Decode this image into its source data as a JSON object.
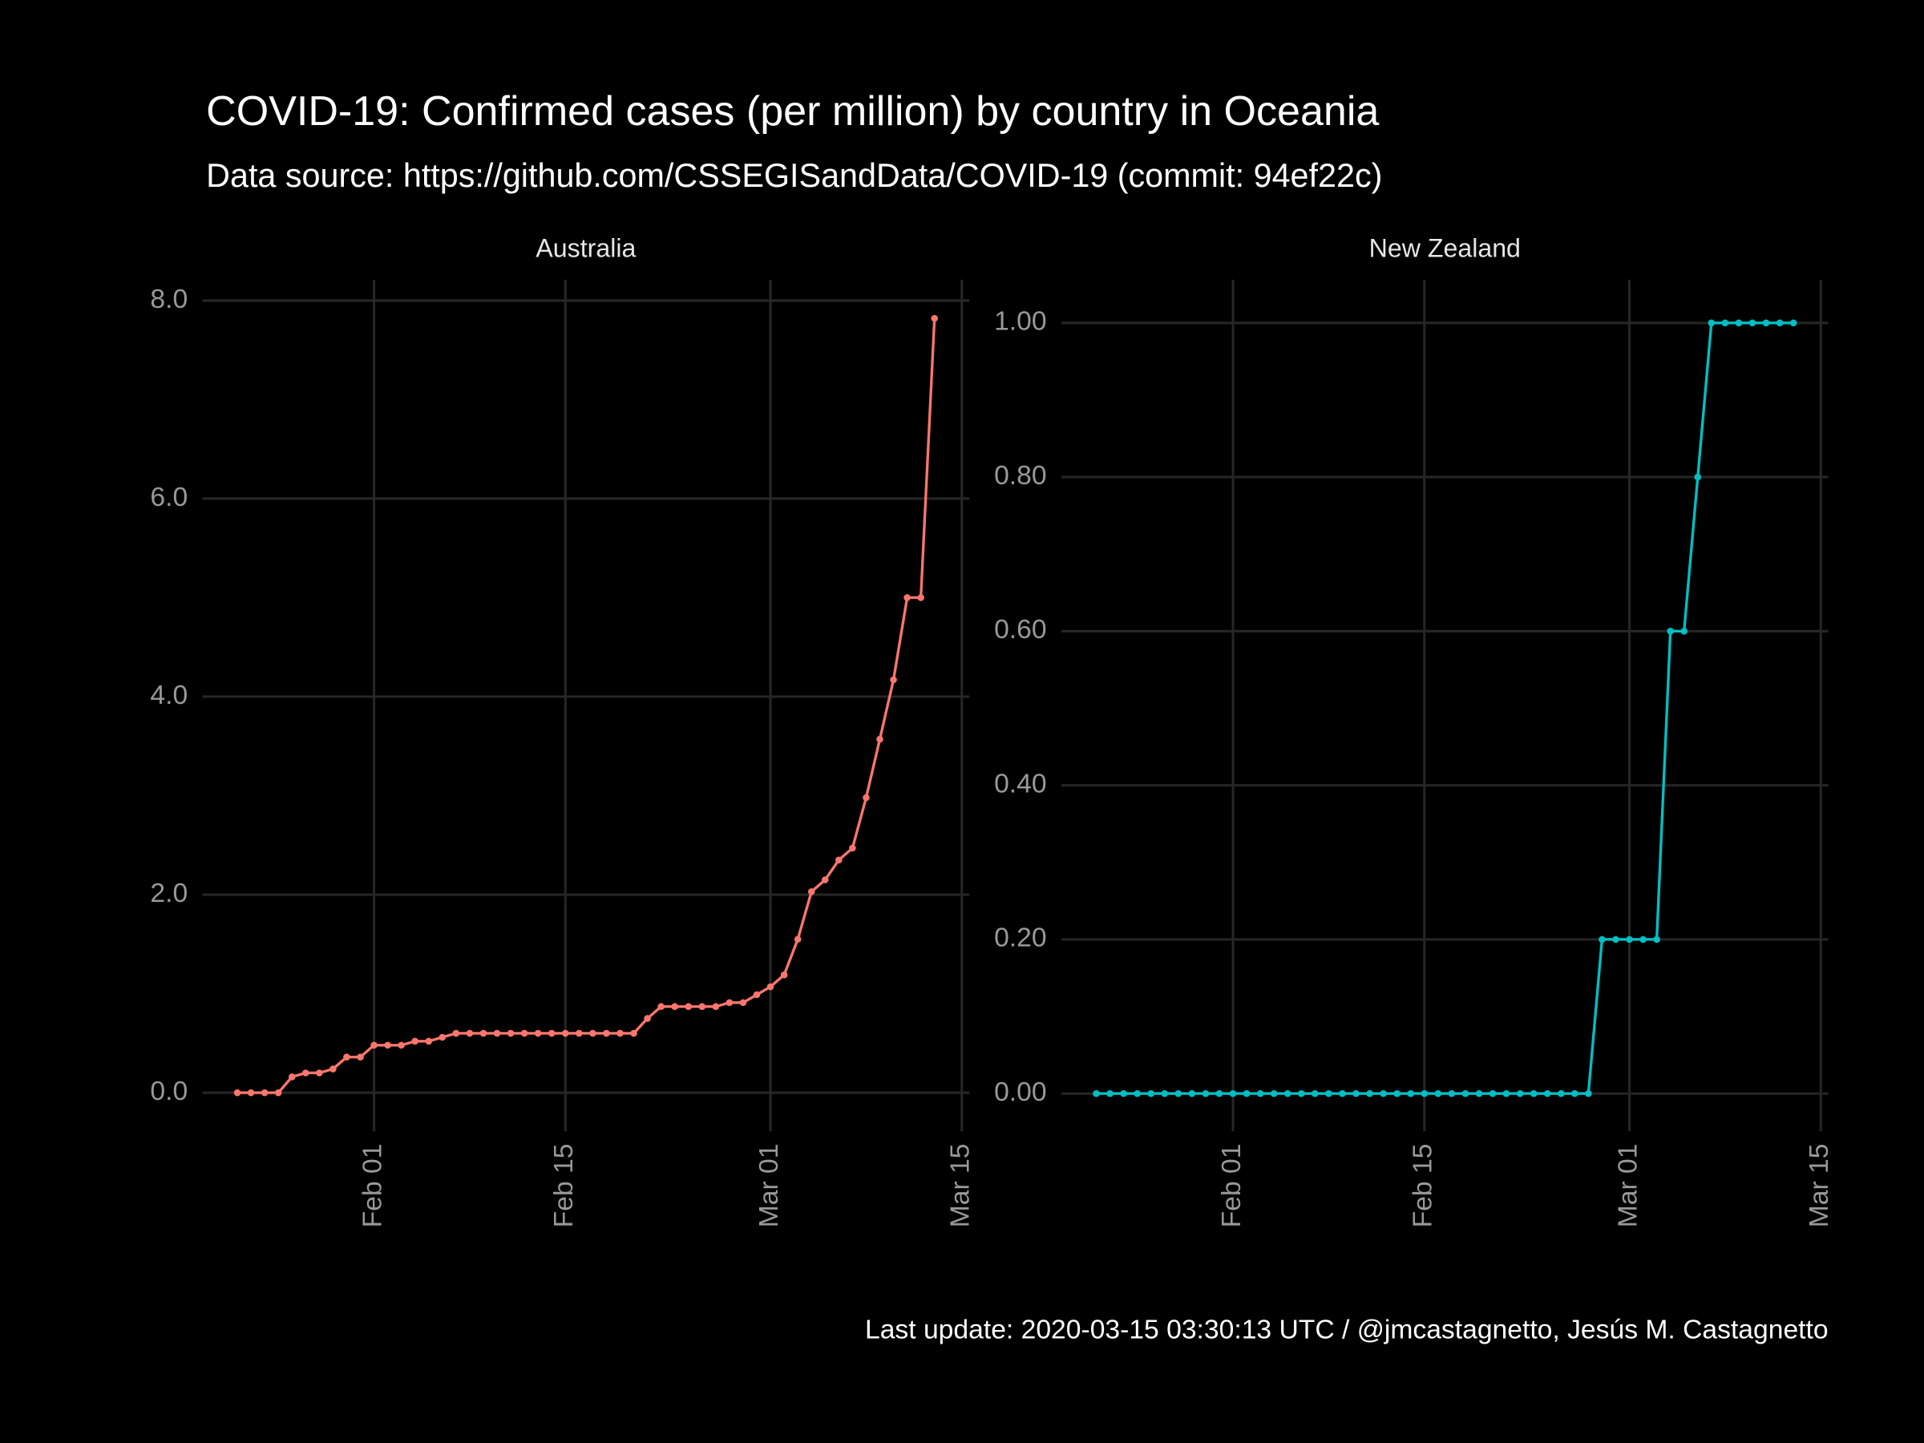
{
  "title": "COVID-19: Confirmed cases (per million)  by country in Oceania",
  "subtitle": "Data source: https://github.com/CSSEGISandData/COVID-19 (commit: 94ef22c)",
  "caption": "Last update:  2020-03-15 03:30:13 UTC / @jmcastagnetto, Jesús M. Castagnetto",
  "chart_data": [
    {
      "type": "line",
      "title": "Australia",
      "color": "#f8766d",
      "grid": true,
      "x": [
        "Jan 22",
        "Jan 23",
        "Jan 24",
        "Jan 25",
        "Jan 26",
        "Jan 27",
        "Jan 28",
        "Jan 29",
        "Jan 30",
        "Jan 31",
        "Feb 01",
        "Feb 02",
        "Feb 03",
        "Feb 04",
        "Feb 05",
        "Feb 06",
        "Feb 07",
        "Feb 08",
        "Feb 09",
        "Feb 10",
        "Feb 11",
        "Feb 12",
        "Feb 13",
        "Feb 14",
        "Feb 15",
        "Feb 16",
        "Feb 17",
        "Feb 18",
        "Feb 19",
        "Feb 20",
        "Feb 21",
        "Feb 22",
        "Feb 23",
        "Feb 24",
        "Feb 25",
        "Feb 26",
        "Feb 27",
        "Feb 28",
        "Feb 29",
        "Mar 01",
        "Mar 02",
        "Mar 03",
        "Mar 04",
        "Mar 05",
        "Mar 06",
        "Mar 07",
        "Mar 08",
        "Mar 09",
        "Mar 10",
        "Mar 11",
        "Mar 12",
        "Mar 13"
      ],
      "values": [
        0,
        0,
        0,
        0,
        0.16,
        0.2,
        0.2,
        0.24,
        0.36,
        0.36,
        0.48,
        0.48,
        0.48,
        0.52,
        0.52,
        0.56,
        0.6,
        0.6,
        0.6,
        0.6,
        0.6,
        0.6,
        0.6,
        0.6,
        0.6,
        0.6,
        0.6,
        0.6,
        0.6,
        0.6,
        0.75,
        0.87,
        0.87,
        0.87,
        0.87,
        0.87,
        0.91,
        0.91,
        0.99,
        1.07,
        1.19,
        1.55,
        2.03,
        2.15,
        2.35,
        2.47,
        2.98,
        3.57,
        4.17,
        5.0,
        5.0,
        7.82
      ],
      "ylim": [
        -0.39,
        8.21
      ],
      "yticks": [
        {
          "value": 0,
          "label": "0.0"
        },
        {
          "value": 2,
          "label": "2.0"
        },
        {
          "value": 4,
          "label": "4.0"
        },
        {
          "value": 6,
          "label": "6.0"
        },
        {
          "value": 8,
          "label": "8.0"
        }
      ],
      "xticks": [
        "Feb 01",
        "Feb 15",
        "Mar 01",
        "Mar 15"
      ]
    },
    {
      "type": "line",
      "title": "New Zealand",
      "color": "#00bfc4",
      "grid": true,
      "x": [
        "Jan 22",
        "Jan 23",
        "Jan 24",
        "Jan 25",
        "Jan 26",
        "Jan 27",
        "Jan 28",
        "Jan 29",
        "Jan 30",
        "Jan 31",
        "Feb 01",
        "Feb 02",
        "Feb 03",
        "Feb 04",
        "Feb 05",
        "Feb 06",
        "Feb 07",
        "Feb 08",
        "Feb 09",
        "Feb 10",
        "Feb 11",
        "Feb 12",
        "Feb 13",
        "Feb 14",
        "Feb 15",
        "Feb 16",
        "Feb 17",
        "Feb 18",
        "Feb 19",
        "Feb 20",
        "Feb 21",
        "Feb 22",
        "Feb 23",
        "Feb 24",
        "Feb 25",
        "Feb 26",
        "Feb 27",
        "Feb 28",
        "Feb 29",
        "Mar 01",
        "Mar 02",
        "Mar 03",
        "Mar 04",
        "Mar 05",
        "Mar 06",
        "Mar 07",
        "Mar 08",
        "Mar 09",
        "Mar 10",
        "Mar 11",
        "Mar 12",
        "Mar 13"
      ],
      "values": [
        0,
        0,
        0,
        0,
        0,
        0,
        0,
        0,
        0,
        0,
        0,
        0,
        0,
        0,
        0,
        0,
        0,
        0,
        0,
        0,
        0,
        0,
        0,
        0,
        0,
        0,
        0,
        0,
        0,
        0,
        0,
        0,
        0,
        0,
        0,
        0,
        0,
        0.2,
        0.2,
        0.2,
        0.2,
        0.2,
        0.6,
        0.6,
        0.8,
        1.0,
        1.0,
        1.0,
        1.0,
        1.0,
        1.0,
        1.0
      ],
      "ylim": [
        -0.049,
        1.056
      ],
      "yticks": [
        {
          "value": 0,
          "label": "0.00"
        },
        {
          "value": 0.2,
          "label": "0.20"
        },
        {
          "value": 0.4,
          "label": "0.40"
        },
        {
          "value": 0.6,
          "label": "0.60"
        },
        {
          "value": 0.8,
          "label": "0.80"
        },
        {
          "value": 1,
          "label": "1.00"
        }
      ],
      "xticks": [
        "Feb 01",
        "Feb 15",
        "Mar 01",
        "Mar 15"
      ]
    }
  ]
}
